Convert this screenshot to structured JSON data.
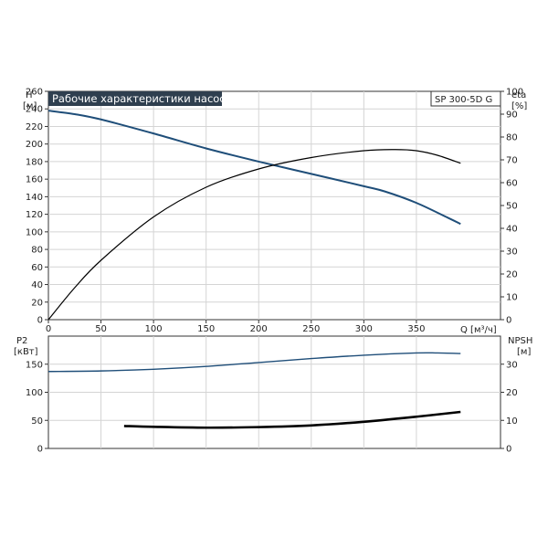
{
  "chart_data": [
    {
      "type": "line",
      "title": "Рабочие характеристики насоса",
      "model": "SP 300-5D G",
      "y_left_label_1": "H",
      "y_left_label_2": "[м]",
      "y_right_label_1": "eta",
      "y_right_label_2": "[%]",
      "x_label": "Q [м³/ч]",
      "xlim": [
        0,
        430
      ],
      "ylim_left": [
        0,
        260
      ],
      "ylim_right": [
        0,
        100
      ],
      "x_ticks": [
        0,
        50,
        100,
        150,
        200,
        250,
        300,
        350
      ],
      "y_left_ticks": [
        0,
        20,
        40,
        60,
        80,
        100,
        120,
        140,
        160,
        180,
        200,
        220,
        240,
        260
      ],
      "y_right_ticks": [
        0,
        10,
        20,
        30,
        40,
        50,
        60,
        70,
        80,
        90,
        100
      ],
      "grid": true,
      "series": [
        {
          "name": "H",
          "axis": "left",
          "color": "#1f4e79",
          "x": [
            0,
            25,
            50,
            100,
            150,
            200,
            250,
            300,
            320,
            350,
            380,
            392
          ],
          "y": [
            238,
            234,
            228,
            212,
            195,
            180,
            166,
            152,
            146,
            133,
            116,
            109
          ]
        },
        {
          "name": "eta",
          "axis": "right",
          "color": "#000000",
          "x": [
            0,
            25,
            50,
            100,
            150,
            200,
            250,
            300,
            330,
            350,
            370,
            392
          ],
          "y": [
            0,
            14,
            26,
            45,
            58,
            66,
            71,
            74,
            74.5,
            74,
            72,
            68.5
          ]
        }
      ]
    },
    {
      "type": "line",
      "y_left_label_1": "P2",
      "y_left_label_2": "[кВт]",
      "y_right_label_1": "NPSH",
      "y_right_label_2": "[м]",
      "xlim": [
        0,
        430
      ],
      "ylim_left": [
        0,
        200
      ],
      "ylim_right": [
        0,
        40
      ],
      "y_left_ticks": [
        0,
        50,
        100,
        150
      ],
      "y_right_ticks": [
        0,
        10,
        20,
        30
      ],
      "grid": true,
      "series": [
        {
          "name": "P2",
          "axis": "left",
          "color": "#1f4e79",
          "x": [
            0,
            50,
            100,
            150,
            200,
            250,
            300,
            350,
            370,
            392
          ],
          "y": [
            137,
            138,
            141,
            146,
            153,
            160,
            166,
            170,
            170,
            169
          ]
        },
        {
          "name": "NPSH",
          "axis": "right",
          "color": "#000000",
          "x": [
            72,
            100,
            150,
            200,
            250,
            300,
            350,
            392
          ],
          "y": [
            8,
            7.7,
            7.4,
            7.6,
            8.2,
            9.5,
            11.3,
            13
          ]
        }
      ]
    }
  ]
}
